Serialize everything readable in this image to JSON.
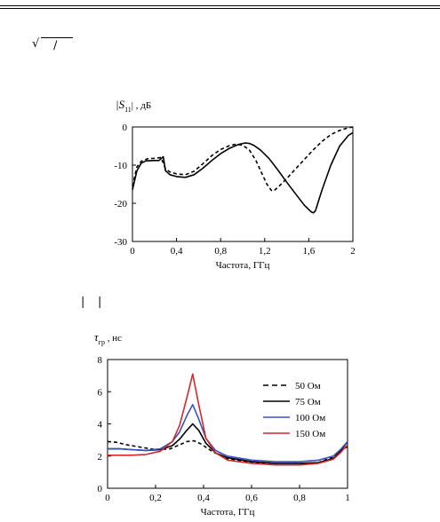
{
  "header_symbols": {
    "radical": "√",
    "slash": "/",
    "bar_left": "|",
    "bar_right": "|"
  },
  "chart_data": [
    {
      "type": "line",
      "ylabel_main": "|S",
      "ylabel_sub": "11",
      "ylabel_tail": "| , дБ",
      "xlabel": "Частота, ГГц",
      "xlim": [
        0,
        2
      ],
      "ylim": [
        -30,
        0
      ],
      "x_ticks": [
        "0",
        "0,4",
        "0,8",
        "1,2",
        "1,6",
        "2"
      ],
      "x_tick_values": [
        0,
        0.4,
        0.8,
        1.2,
        1.6,
        2.0
      ],
      "y_ticks": [
        "0",
        "-10",
        "-20",
        "-30"
      ],
      "y_tick_values": [
        0,
        -10,
        -20,
        -30
      ],
      "grid": false,
      "series": [
        {
          "style": "solid",
          "color": "#000000",
          "x": [
            0,
            0.04,
            0.08,
            0.12,
            0.18,
            0.24,
            0.28,
            0.3,
            0.34,
            0.4,
            0.48,
            0.56,
            0.64,
            0.72,
            0.8,
            0.88,
            0.96,
            1.02,
            1.06,
            1.1,
            1.16,
            1.24,
            1.32,
            1.4,
            1.48,
            1.56,
            1.62,
            1.64,
            1.66,
            1.72,
            1.8,
            1.88,
            1.96,
            2.0
          ],
          "y": [
            -16.5,
            -11.5,
            -9.5,
            -8.9,
            -8.8,
            -8.8,
            -7.8,
            -11.5,
            -12.5,
            -13.0,
            -13.2,
            -12.5,
            -10.8,
            -8.8,
            -7.0,
            -5.6,
            -4.6,
            -4.2,
            -4.3,
            -4.8,
            -6.0,
            -8.3,
            -11.3,
            -14.5,
            -17.5,
            -20.5,
            -22.2,
            -22.5,
            -22.0,
            -16.5,
            -10.0,
            -5.0,
            -2.2,
            -1.5
          ]
        },
        {
          "style": "dashed",
          "color": "#000000",
          "x": [
            0,
            0.04,
            0.08,
            0.14,
            0.2,
            0.26,
            0.3,
            0.34,
            0.4,
            0.48,
            0.56,
            0.64,
            0.72,
            0.8,
            0.88,
            0.94,
            1.0,
            1.06,
            1.12,
            1.18,
            1.22,
            1.26,
            1.28,
            1.32,
            1.4,
            1.48,
            1.56,
            1.64,
            1.72,
            1.8,
            1.88,
            1.96,
            2.0
          ],
          "y": [
            -15.5,
            -10.5,
            -9.0,
            -8.3,
            -8.2,
            -8.0,
            -11.0,
            -11.8,
            -12.3,
            -12.5,
            -11.6,
            -9.6,
            -7.5,
            -5.9,
            -4.9,
            -4.5,
            -4.8,
            -6.0,
            -8.8,
            -12.5,
            -15.0,
            -16.6,
            -16.8,
            -15.8,
            -13.5,
            -11.0,
            -8.5,
            -6.0,
            -3.8,
            -2.0,
            -0.9,
            -0.2,
            0.0
          ]
        }
      ]
    },
    {
      "type": "line",
      "ylabel_main": "τ",
      "ylabel_sub": "гр",
      "ylabel_tail": " , нс",
      "xlabel": "Частота, ГГц",
      "xlim": [
        0,
        1
      ],
      "ylim": [
        0,
        8
      ],
      "x_ticks": [
        "0",
        "0,2",
        "0,4",
        "0,6",
        "0,8",
        "1"
      ],
      "x_tick_values": [
        0,
        0.2,
        0.4,
        0.6,
        0.8,
        1.0
      ],
      "y_ticks": [
        "0",
        "2",
        "4",
        "6",
        "8"
      ],
      "y_tick_values": [
        0,
        2,
        4,
        6,
        8
      ],
      "grid": false,
      "legend_position": "right",
      "series": [
        {
          "name": "50 Ом",
          "style": "dashed",
          "color": "#000000",
          "x": [
            0,
            0.04,
            0.08,
            0.14,
            0.2,
            0.26,
            0.3,
            0.33,
            0.36,
            0.39,
            0.44,
            0.5,
            0.6,
            0.7,
            0.8,
            0.88,
            0.94,
            0.97,
            1.0
          ],
          "y": [
            2.9,
            2.85,
            2.7,
            2.55,
            2.4,
            2.45,
            2.7,
            2.9,
            2.95,
            2.75,
            2.25,
            1.85,
            1.6,
            1.45,
            1.45,
            1.6,
            1.95,
            2.3,
            2.6
          ]
        },
        {
          "name": "75 Ом",
          "style": "solid",
          "color": "#000000",
          "x": [
            0,
            0.05,
            0.1,
            0.16,
            0.22,
            0.27,
            0.3,
            0.33,
            0.355,
            0.38,
            0.41,
            0.45,
            0.5,
            0.6,
            0.7,
            0.8,
            0.88,
            0.94,
            0.97,
            1.0
          ],
          "y": [
            2.45,
            2.45,
            2.4,
            2.35,
            2.4,
            2.65,
            3.05,
            3.6,
            4.0,
            3.6,
            2.8,
            2.2,
            1.9,
            1.65,
            1.55,
            1.55,
            1.6,
            1.85,
            2.3,
            2.9
          ]
        },
        {
          "name": "100 Ом",
          "style": "solid",
          "color": "#3a52c4",
          "x": [
            0,
            0.05,
            0.1,
            0.16,
            0.22,
            0.27,
            0.3,
            0.33,
            0.355,
            0.38,
            0.41,
            0.45,
            0.5,
            0.6,
            0.7,
            0.8,
            0.88,
            0.94,
            0.97,
            1.0
          ],
          "y": [
            2.45,
            2.45,
            2.4,
            2.35,
            2.45,
            2.9,
            3.5,
            4.5,
            5.2,
            4.3,
            3.1,
            2.35,
            2.0,
            1.75,
            1.65,
            1.65,
            1.75,
            2.0,
            2.4,
            2.9
          ]
        },
        {
          "name": "150 Ом",
          "style": "solid",
          "color": "#d42a2a",
          "x": [
            0,
            0.05,
            0.1,
            0.16,
            0.22,
            0.27,
            0.3,
            0.33,
            0.355,
            0.38,
            0.41,
            0.45,
            0.5,
            0.6,
            0.7,
            0.8,
            0.88,
            0.94,
            0.97,
            1.0
          ],
          "y": [
            2.05,
            2.05,
            2.05,
            2.1,
            2.3,
            2.9,
            3.9,
            5.6,
            7.1,
            5.2,
            3.1,
            2.2,
            1.75,
            1.55,
            1.45,
            1.45,
            1.55,
            1.8,
            2.2,
            2.7
          ]
        }
      ]
    }
  ]
}
